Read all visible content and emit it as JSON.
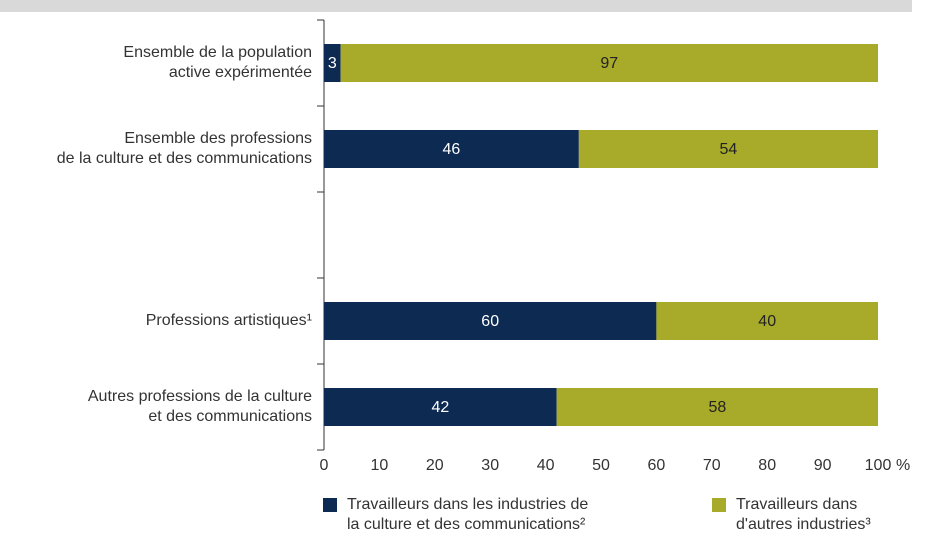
{
  "chart_data": {
    "type": "stacked_barh",
    "categories": [
      "Ensemble de la population\nactive expérimentée",
      "Ensemble des professions\nde la culture et des communications",
      null,
      "Professions artistiques¹",
      "Autres professions de la culture\net des communications"
    ],
    "series": [
      {
        "name": "Travailleurs dans les industries de\nla culture et des communications²",
        "color": "#0c2a52",
        "values": [
          3,
          46,
          null,
          60,
          42
        ]
      },
      {
        "name": "Travailleurs dans\nd'autres industries³",
        "color": "#a8aa2a",
        "values": [
          97,
          54,
          null,
          40,
          58
        ]
      }
    ],
    "xlim": [
      0,
      100
    ],
    "xticks": [
      0,
      10,
      20,
      30,
      40,
      50,
      60,
      70,
      80,
      90,
      100
    ],
    "xlabel": "%",
    "grid": false
  }
}
